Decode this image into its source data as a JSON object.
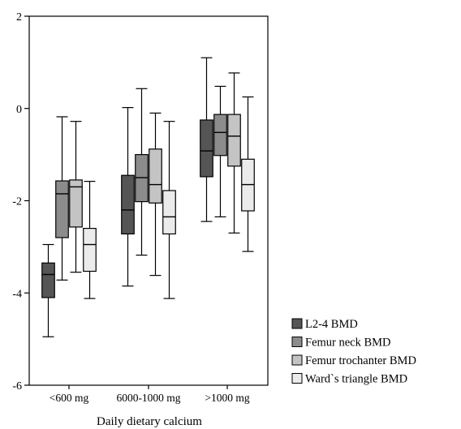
{
  "chart_data": {
    "type": "boxplot",
    "title": "",
    "xlabel": "Daily dietary calcium",
    "ylabel": "",
    "ylim": [
      -6,
      2
    ],
    "yticks": [
      "-6",
      "-4",
      "-2",
      "0",
      "2"
    ],
    "grid": false,
    "legend_position": "right, bottom",
    "categories": [
      "<600 mg",
      "6000-1000 mg",
      ">1000 mg"
    ],
    "series": [
      {
        "name": "L2-4 BMD",
        "color": "#555555",
        "boxes": [
          {
            "min": -4.95,
            "q1": -4.1,
            "median": -3.6,
            "q3": -3.35,
            "max": -2.95
          },
          {
            "min": -3.85,
            "q1": -2.72,
            "median": -2.2,
            "q3": -1.45,
            "max": 0.02
          },
          {
            "min": -2.45,
            "q1": -1.48,
            "median": -0.92,
            "q3": -0.25,
            "max": 1.1
          }
        ]
      },
      {
        "name": "Femur neck BMD",
        "color": "#8c8c8c",
        "boxes": [
          {
            "min": -3.72,
            "q1": -2.8,
            "median": -1.85,
            "q3": -1.57,
            "max": -0.18
          },
          {
            "min": -3.18,
            "q1": -2.02,
            "median": -1.5,
            "q3": -1.0,
            "max": 0.43
          },
          {
            "min": -2.35,
            "q1": -1.02,
            "median": -0.52,
            "q3": -0.13,
            "max": 0.48
          }
        ]
      },
      {
        "name": "Femur trochanter BMD",
        "color": "#c4c4c4",
        "boxes": [
          {
            "min": -3.55,
            "q1": -2.57,
            "median": -1.7,
            "q3": -1.55,
            "max": -0.28
          },
          {
            "min": -3.62,
            "q1": -2.05,
            "median": -1.65,
            "q3": -0.88,
            "max": -0.1
          },
          {
            "min": -2.7,
            "q1": -1.25,
            "median": -0.6,
            "q3": -0.13,
            "max": 0.77
          }
        ]
      },
      {
        "name": "Ward`s triangle BMD",
        "color": "#ebebeb",
        "boxes": [
          {
            "min": -4.12,
            "q1": -3.53,
            "median": -2.95,
            "q3": -2.6,
            "max": -1.58
          },
          {
            "min": -4.12,
            "q1": -2.72,
            "median": -2.35,
            "q3": -1.78,
            "max": -0.28
          },
          {
            "min": -3.1,
            "q1": -2.22,
            "median": -1.65,
            "q3": -1.1,
            "max": 0.25
          }
        ]
      }
    ]
  }
}
